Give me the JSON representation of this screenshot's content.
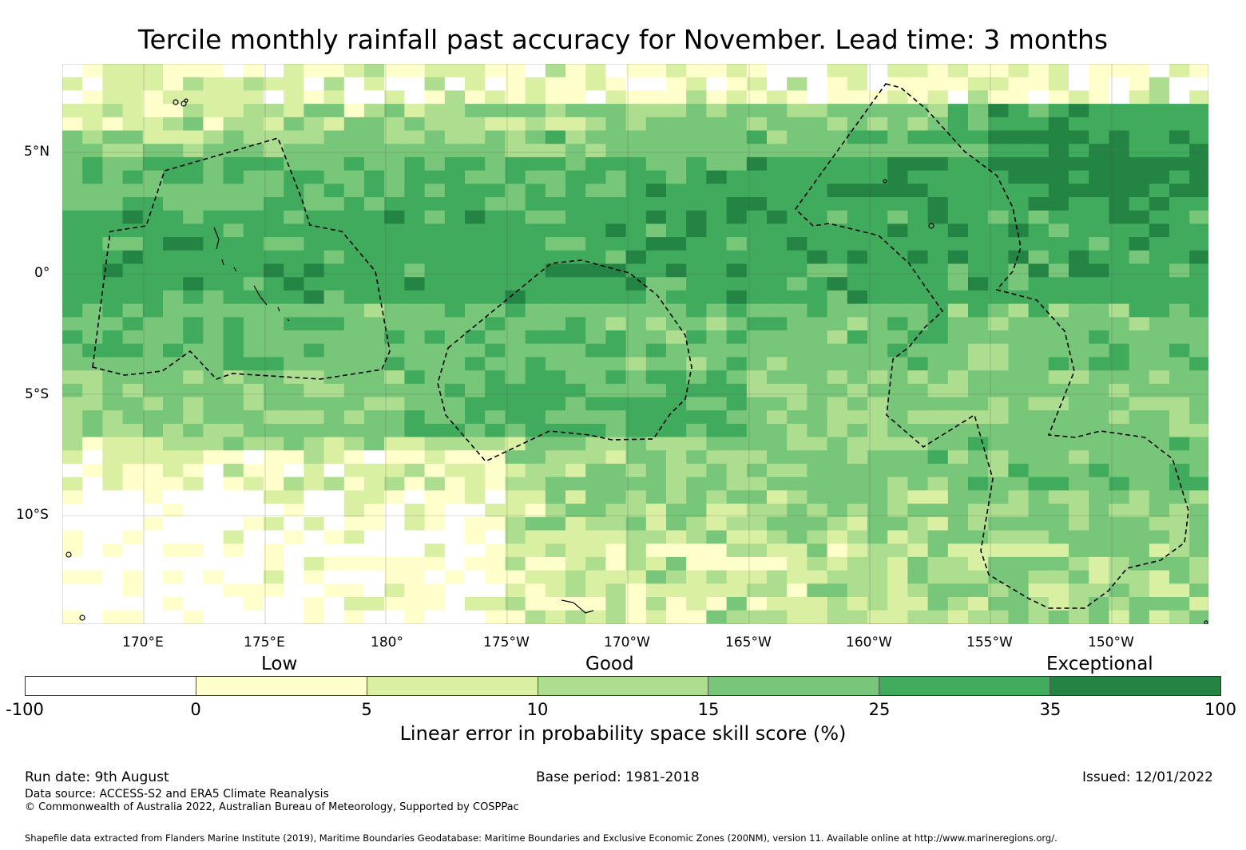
{
  "title": "Tercile monthly rainfall past accuracy for November. Lead time: 3 months",
  "map": {
    "lon_labels": [
      "170°E",
      "175°E",
      "180°",
      "175°W",
      "170°W",
      "165°W",
      "160°W",
      "155°W",
      "150°W"
    ],
    "lat_labels": [
      "5°N",
      "0°",
      "5°S",
      "10°S"
    ]
  },
  "categories": [
    "Low",
    "Good",
    "Exceptional"
  ],
  "colorbar": {
    "title": "Linear error in probability space skill score (%)",
    "ticks": [
      "-100",
      "0",
      "5",
      "10",
      "15",
      "25",
      "35",
      "100"
    ],
    "colors": [
      "#ffffff",
      "#ffffcc",
      "#d9f0a3",
      "#addd8e",
      "#78c679",
      "#41ab5d",
      "#238443"
    ]
  },
  "footer": {
    "run_date": "Run date: 9th August",
    "base_period": "Base period: 1981-2018",
    "issued": "Issued: 12/01/2022",
    "data_source": "Data source: ACCESS-S2 and ERA5 Climate Reanalysis",
    "copyright": "© Commonwealth of Australia 2022, Australian Bureau of Meteorology, Supported by COSPPac",
    "shapefile": "Shapefile data extracted from Flanders Marine Institute (2019), Maritime Boundaries Geodatabase: Maritime Boundaries and Exclusive Economic Zones (200NM), version 11. Available online at http://www.marineregions.org/."
  }
}
